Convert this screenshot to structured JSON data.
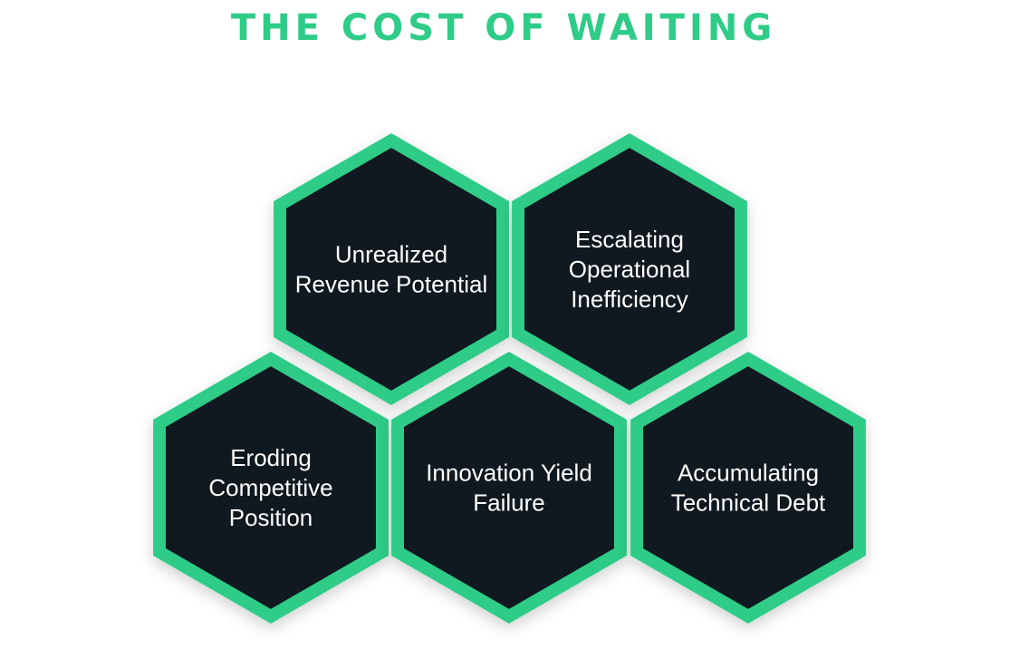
{
  "title": "THE COST OF WAITING",
  "colors": {
    "accent": "#2ecc87",
    "hex_fill": "#101820",
    "label": "#ffffff",
    "background": "#ffffff"
  },
  "hexagons": [
    {
      "id": "unrealized-revenue-potential",
      "lines": [
        "Unrealized",
        "Revenue Potential"
      ]
    },
    {
      "id": "escalating-operational-inefficiency",
      "lines": [
        "Escalating",
        "Operational",
        "Inefficiency"
      ]
    },
    {
      "id": "eroding-competitive-position",
      "lines": [
        "Eroding",
        "Competitive",
        "Position"
      ]
    },
    {
      "id": "innovation-yield-failure",
      "lines": [
        "Innovation Yield",
        "Failure"
      ]
    },
    {
      "id": "accumulating-technical-debt",
      "lines": [
        "Accumulating",
        "Technical Debt"
      ]
    }
  ]
}
